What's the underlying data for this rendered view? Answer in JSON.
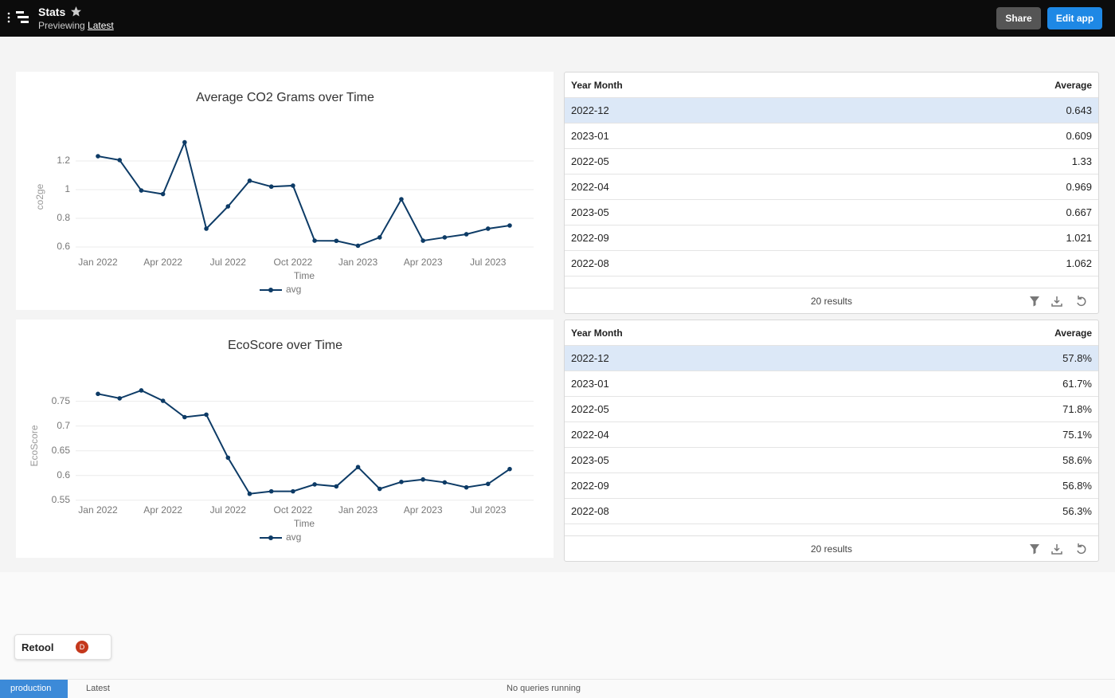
{
  "header": {
    "title": "Stats",
    "previewing": "Previewing",
    "version": "Latest",
    "share": "Share",
    "edit": "Edit app"
  },
  "chart_data": [
    {
      "type": "line",
      "title": "Average CO2 Grams over Time",
      "x_label": "Time",
      "y_label": "co2ge",
      "x": [
        "2022-01",
        "2022-02",
        "2022-03",
        "2022-04",
        "2022-05",
        "2022-06",
        "2022-07",
        "2022-08",
        "2022-09",
        "2022-10",
        "2022-11",
        "2022-12",
        "2023-01",
        "2023-02",
        "2023-03",
        "2023-04",
        "2023-05",
        "2023-06",
        "2023-07",
        "2023-08"
      ],
      "series": [
        {
          "name": "avg",
          "color": "#0d3b66",
          "values": [
            1.233,
            1.206,
            0.994,
            0.969,
            1.33,
            0.728,
            0.883,
            1.062,
            1.021,
            1.028,
            0.644,
            0.643,
            0.609,
            0.667,
            0.933,
            0.644,
            0.667,
            0.689,
            0.728,
            0.75
          ]
        }
      ],
      "xlim": [
        "2022-01",
        "2023-08"
      ],
      "xticks": [
        {
          "value": "2022-01",
          "label": "Jan 2022"
        },
        {
          "value": "2022-04",
          "label": "Apr 2022"
        },
        {
          "value": "2022-07",
          "label": "Jul 2022"
        },
        {
          "value": "2022-10",
          "label": "Oct 2022"
        },
        {
          "value": "2023-01",
          "label": "Jan 2023"
        },
        {
          "value": "2023-04",
          "label": "Apr 2023"
        },
        {
          "value": "2023-07",
          "label": "Jul 2023"
        }
      ],
      "ylim": [
        0.55,
        1.35
      ],
      "yticks": [
        0.6,
        0.8,
        1,
        1.2
      ],
      "grid": true
    },
    {
      "type": "line",
      "title": "EcoScore over Time",
      "x_label": "Time",
      "y_label": "EcoScore",
      "x": [
        "2022-01",
        "2022-02",
        "2022-03",
        "2022-04",
        "2022-05",
        "2022-06",
        "2022-07",
        "2022-08",
        "2022-09",
        "2022-10",
        "2022-11",
        "2022-12",
        "2023-01",
        "2023-02",
        "2023-03",
        "2023-04",
        "2023-05",
        "2023-06",
        "2023-07",
        "2023-08"
      ],
      "series": [
        {
          "name": "avg",
          "color": "#0d3b66",
          "values": [
            0.765,
            0.756,
            0.772,
            0.751,
            0.718,
            0.723,
            0.636,
            0.563,
            0.568,
            0.568,
            0.582,
            0.578,
            0.617,
            0.573,
            0.587,
            0.592,
            0.586,
            0.576,
            0.583,
            0.613
          ]
        }
      ],
      "xlim": [
        "2022-01",
        "2023-08"
      ],
      "xticks": [
        {
          "value": "2022-01",
          "label": "Jan 2022"
        },
        {
          "value": "2022-04",
          "label": "Apr 2022"
        },
        {
          "value": "2022-07",
          "label": "Jul 2022"
        },
        {
          "value": "2022-10",
          "label": "Oct 2022"
        },
        {
          "value": "2023-01",
          "label": "Jan 2023"
        },
        {
          "value": "2023-04",
          "label": "Apr 2023"
        },
        {
          "value": "2023-07",
          "label": "Jul 2023"
        }
      ],
      "ylim": [
        0.54,
        0.78
      ],
      "yticks": [
        0.55,
        0.6,
        0.65,
        0.7,
        0.75
      ],
      "grid": true
    }
  ],
  "tables": [
    {
      "columns": [
        "Year Month",
        "Average"
      ],
      "rows": [
        [
          "2022-12",
          "0.643"
        ],
        [
          "2023-01",
          "0.609"
        ],
        [
          "2022-05",
          "1.33"
        ],
        [
          "2022-04",
          "0.969"
        ],
        [
          "2023-05",
          "0.667"
        ],
        [
          "2022-09",
          "1.021"
        ],
        [
          "2022-08",
          "1.062"
        ]
      ],
      "footer": "20 results"
    },
    {
      "columns": [
        "Year Month",
        "Average"
      ],
      "rows": [
        [
          "2022-12",
          "57.8%"
        ],
        [
          "2023-01",
          "61.7%"
        ],
        [
          "2022-05",
          "71.8%"
        ],
        [
          "2022-04",
          "75.1%"
        ],
        [
          "2023-05",
          "58.6%"
        ],
        [
          "2022-09",
          "56.8%"
        ],
        [
          "2022-08",
          "56.3%"
        ]
      ],
      "footer": "20 results"
    }
  ],
  "footer": {
    "brand": "Retool",
    "avatar": "D",
    "environment": "production",
    "version": "Latest",
    "status": "No queries running"
  }
}
